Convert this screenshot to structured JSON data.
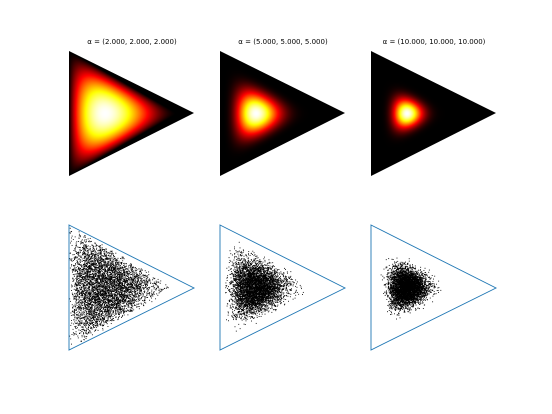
{
  "chart_data": [
    {
      "type": "heatmap",
      "title_prefix": "α = ",
      "title_value": "(2.000, 2.000, 2.000)",
      "alpha": [
        2,
        2,
        2
      ],
      "colormap": "hot",
      "axes_visible": false
    },
    {
      "type": "heatmap",
      "title_prefix": "α = ",
      "title_value": "(5.000, 5.000, 5.000)",
      "alpha": [
        5,
        5,
        5
      ],
      "colormap": "hot",
      "axes_visible": false
    },
    {
      "type": "heatmap",
      "title_prefix": "α = ",
      "title_value": "(10.000, 10.000, 10.000)",
      "alpha": [
        10,
        10,
        10
      ],
      "colormap": "hot",
      "axes_visible": false
    },
    {
      "type": "scatter",
      "alpha": [
        2,
        2,
        2
      ],
      "marker_color": "#000000",
      "outline_color": "#1f77b4",
      "axes_visible": false
    },
    {
      "type": "scatter",
      "alpha": [
        5,
        5,
        5
      ],
      "marker_color": "#000000",
      "outline_color": "#1f77b4",
      "axes_visible": false
    },
    {
      "type": "scatter",
      "alpha": [
        10,
        10,
        10
      ],
      "marker_color": "#000000",
      "outline_color": "#1f77b4",
      "axes_visible": false
    }
  ]
}
